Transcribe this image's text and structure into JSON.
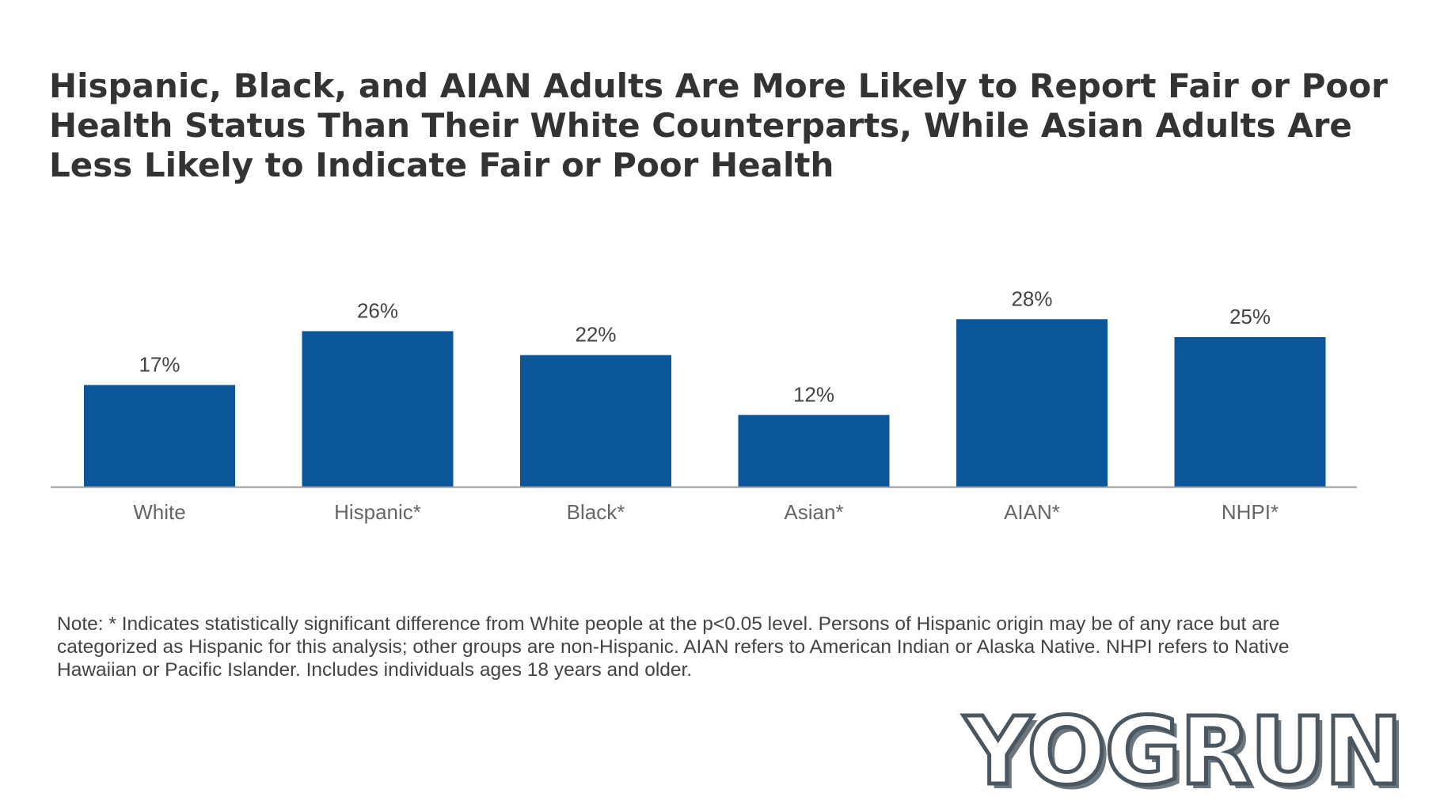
{
  "chart_data": {
    "type": "bar",
    "title": "Hispanic, Black, and AIAN Adults Are More Likely to Report Fair or Poor Health Status Than Their White Counterparts, While Asian Adults Are Less Likely to Indicate Fair or Poor Health",
    "categories": [
      "White",
      "Hispanic*",
      "Black*",
      "Asian*",
      "AIAN*",
      "NHPI*"
    ],
    "values": [
      17,
      26,
      22,
      12,
      28,
      25
    ],
    "data_labels": [
      "17%",
      "26%",
      "22%",
      "12%",
      "28%",
      "25%"
    ],
    "unit": "%",
    "ylim": [
      0,
      30
    ],
    "grid": false,
    "legend": "none",
    "bar_color": "#0a5699",
    "note": "Note: * Indicates statistically significant difference from White people at the p<0.05 level. Persons of Hispanic origin may be of any race but are categorized as Hispanic for this analysis; other groups are non-Hispanic. AIAN refers to American Indian or Alaska Native. NHPI refers to Native Hawaiian or Pacific Islander. Includes individuals ages 18 years and older."
  },
  "watermark": "YOGRUN"
}
